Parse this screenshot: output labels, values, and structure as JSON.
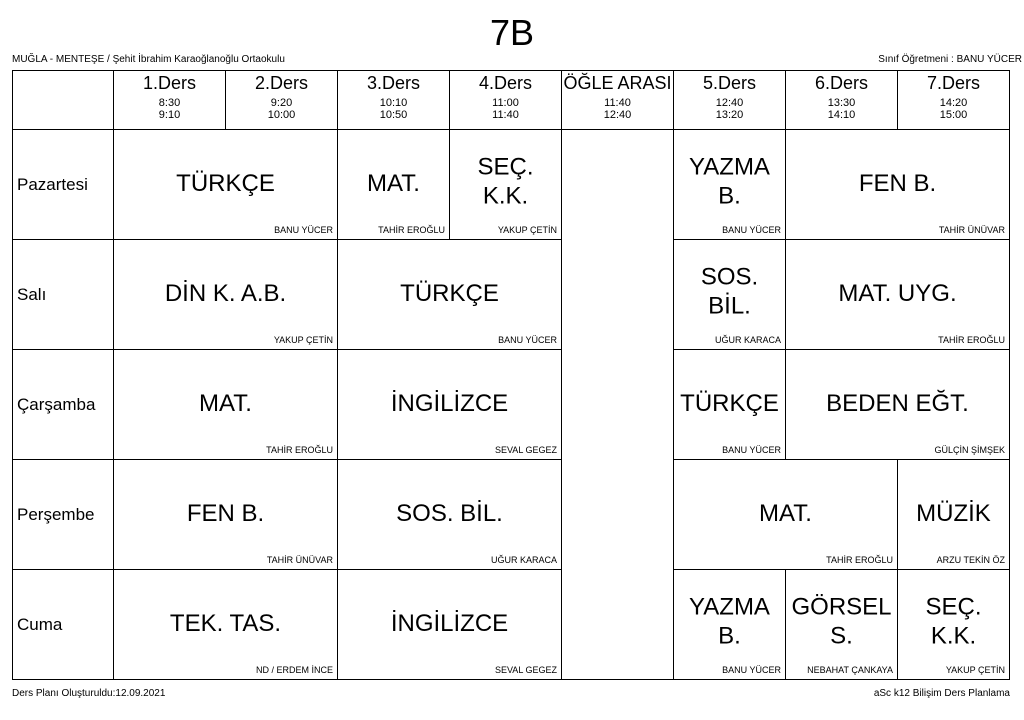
{
  "title": "7B",
  "school": "MUĞLA - MENTEŞE / Şehit İbrahim Karaoğlanoğlu Ortaokulu",
  "class_teacher": "Sınıf Öğretmeni : BANU YÜCER",
  "periods": [
    {
      "name": "1.Ders",
      "start": "8:30",
      "end": "9:10"
    },
    {
      "name": "2.Ders",
      "start": "9:20",
      "end": "10:00"
    },
    {
      "name": "3.Ders",
      "start": "10:10",
      "end": "10:50"
    },
    {
      "name": "4.Ders",
      "start": "11:00",
      "end": "11:40"
    },
    {
      "name": "ÖĞLE ARASI",
      "start": "11:40",
      "end": "12:40"
    },
    {
      "name": "5.Ders",
      "start": "12:40",
      "end": "13:20"
    },
    {
      "name": "6.Ders",
      "start": "13:30",
      "end": "14:10"
    },
    {
      "name": "7.Ders",
      "start": "14:20",
      "end": "15:00"
    }
  ],
  "days": [
    {
      "day": "Pazartesi",
      "am": [
        {
          "subject": "TÜRKÇE",
          "teacher": "BANU YÜCER",
          "span": 2
        },
        {
          "subject": "MAT.",
          "teacher": "TAHİR EROĞLU",
          "span": 1
        },
        {
          "subject": "SEÇ. K.K.",
          "teacher": "YAKUP ÇETİN",
          "span": 1
        }
      ],
      "pm": [
        {
          "subject": "YAZMA B.",
          "teacher": "BANU YÜCER",
          "span": 1
        },
        {
          "subject": "FEN B.",
          "teacher": "TAHİR ÜNÜVAR",
          "span": 2
        }
      ]
    },
    {
      "day": "Salı",
      "am": [
        {
          "subject": "DİN K. A.B.",
          "teacher": "YAKUP ÇETİN",
          "span": 2
        },
        {
          "subject": "TÜRKÇE",
          "teacher": "BANU YÜCER",
          "span": 2
        }
      ],
      "pm": [
        {
          "subject": "SOS. BİL.",
          "teacher": "UĞUR KARACA",
          "span": 1
        },
        {
          "subject": "MAT. UYG.",
          "teacher": "TAHİR EROĞLU",
          "span": 2
        }
      ]
    },
    {
      "day": "Çarşamba",
      "am": [
        {
          "subject": "MAT.",
          "teacher": "TAHİR EROĞLU",
          "span": 2
        },
        {
          "subject": "İNGİLİZCE",
          "teacher": "SEVAL GEGEZ",
          "span": 2
        }
      ],
      "pm": [
        {
          "subject": "TÜRKÇE",
          "teacher": "BANU YÜCER",
          "span": 1
        },
        {
          "subject": "BEDEN EĞT.",
          "teacher": "GÜLÇİN ŞİMŞEK",
          "span": 2
        }
      ]
    },
    {
      "day": "Perşembe",
      "am": [
        {
          "subject": "FEN B.",
          "teacher": "TAHİR ÜNÜVAR",
          "span": 2
        },
        {
          "subject": "SOS. BİL.",
          "teacher": "UĞUR KARACA",
          "span": 2
        }
      ],
      "pm": [
        {
          "subject": "MAT.",
          "teacher": "TAHİR EROĞLU",
          "span": 2
        },
        {
          "subject": "MÜZİK",
          "teacher": "ARZU TEKİN ÖZ",
          "span": 1
        }
      ]
    },
    {
      "day": "Cuma",
      "am": [
        {
          "subject": "TEK. TAS.",
          "teacher": "ND / ERDEM İNCE",
          "span": 2
        },
        {
          "subject": "İNGİLİZCE",
          "teacher": "SEVAL GEGEZ",
          "span": 2
        }
      ],
      "pm": [
        {
          "subject": "YAZMA B.",
          "teacher": "BANU YÜCER",
          "span": 1
        },
        {
          "subject": "GÖRSEL S.",
          "teacher": "NEBAHAT ÇANKAYA",
          "span": 1
        },
        {
          "subject": "SEÇ. K.K.",
          "teacher": "YAKUP ÇETİN",
          "span": 1
        }
      ]
    }
  ],
  "footer_left": "Ders Planı Oluşturuldu:12.09.2021",
  "footer_right": "aSc k12 Bilişim Ders Planlama"
}
